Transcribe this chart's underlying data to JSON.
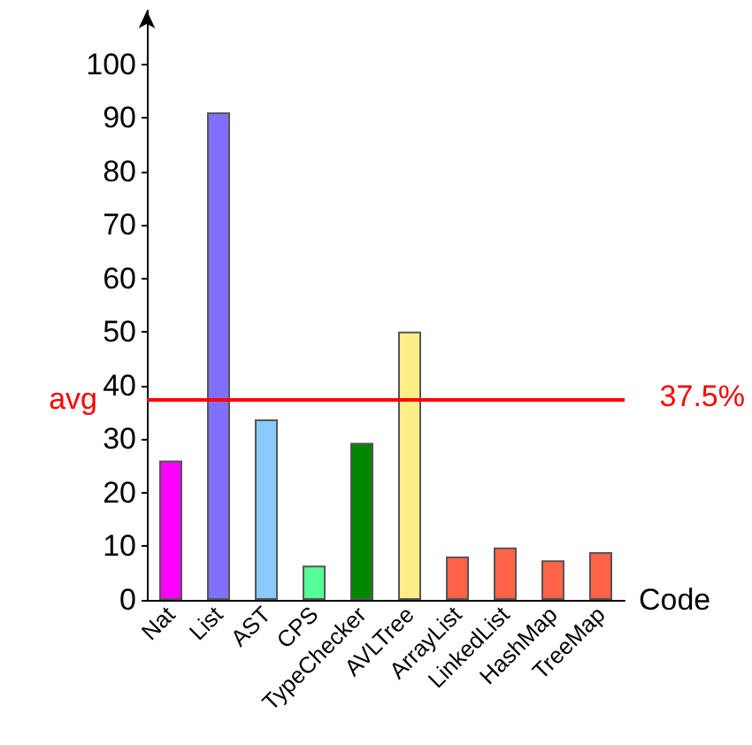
{
  "chart_data": {
    "type": "bar",
    "xlabel": "Code",
    "categories": [
      "Nat",
      "List",
      "AST",
      "CPS",
      "TypeChecker",
      "AVLTree",
      "ArrayList",
      "LinkedList",
      "HashMap",
      "TreeMap"
    ],
    "values": [
      26,
      91,
      33.7,
      6.4,
      29.3,
      50.1,
      8.1,
      9.8,
      7.4,
      8.9
    ],
    "colors": [
      "#ff00ff",
      "#8070ff",
      "#88ccff",
      "#55ff99",
      "#008800",
      "#ffee88",
      "#ff6347",
      "#ff6347",
      "#ff6347",
      "#ff6347"
    ],
    "ylim": [
      0,
      110
    ],
    "yticks": [
      0,
      10,
      20,
      30,
      40,
      50,
      60,
      70,
      80,
      90,
      100
    ],
    "ref_lines": [
      {
        "axis": "y",
        "value": 37.5,
        "label": "avg",
        "color": "#ff0000"
      }
    ],
    "annotations": [
      "37.5%"
    ]
  }
}
